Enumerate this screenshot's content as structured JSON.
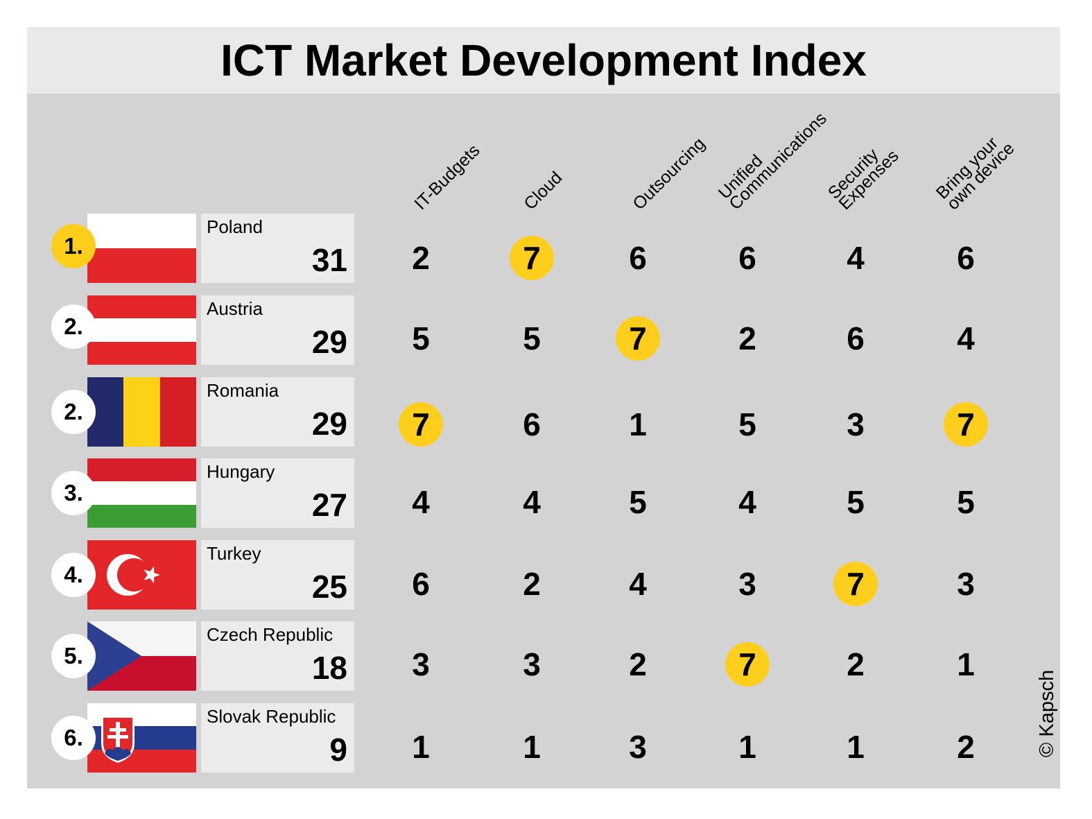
{
  "chart_data": {
    "type": "table",
    "title": "ICT Market Development Index",
    "columns": [
      {
        "lines": [
          "IT-Budgets"
        ]
      },
      {
        "lines": [
          "Cloud"
        ]
      },
      {
        "lines": [
          "Outsourcing"
        ]
      },
      {
        "lines": [
          "Unified",
          "Communications"
        ]
      },
      {
        "lines": [
          "Security",
          "Expenses"
        ]
      },
      {
        "lines": [
          "Bring your",
          "own device"
        ]
      }
    ],
    "rows": [
      {
        "rank": "1.",
        "country": "Poland",
        "total": "31",
        "values": [
          "2",
          "7",
          "6",
          "6",
          "4",
          "6"
        ],
        "highlight": [
          1
        ]
      },
      {
        "rank": "2.",
        "country": "Austria",
        "total": "29",
        "values": [
          "5",
          "5",
          "7",
          "2",
          "6",
          "4"
        ],
        "highlight": [
          2
        ]
      },
      {
        "rank": "2.",
        "country": "Romania",
        "total": "29",
        "values": [
          "7",
          "6",
          "1",
          "5",
          "3",
          "7"
        ],
        "highlight": [
          0,
          5
        ]
      },
      {
        "rank": "3.",
        "country": "Hungary",
        "total": "27",
        "values": [
          "4",
          "4",
          "5",
          "4",
          "5",
          "5"
        ],
        "highlight": []
      },
      {
        "rank": "4.",
        "country": "Turkey",
        "total": "25",
        "values": [
          "6",
          "2",
          "4",
          "3",
          "7",
          "3"
        ],
        "highlight": [
          4
        ]
      },
      {
        "rank": "5.",
        "country": "Czech Republic",
        "total": "18",
        "values": [
          "3",
          "3",
          "2",
          "7",
          "2",
          "1"
        ],
        "highlight": [
          3
        ]
      },
      {
        "rank": "6.",
        "country": "Slovak Republic",
        "total": "9",
        "values": [
          "1",
          "1",
          "3",
          "1",
          "1",
          "2"
        ],
        "highlight": []
      }
    ]
  },
  "credit": "© Kapsch",
  "colors": {
    "background": "#d4d3d3",
    "title_bar": "#e9e9e9",
    "highlight": "#fece1c",
    "name_box": "#ebebeb"
  },
  "flags": [
    "flag-poland-icon",
    "flag-austria-icon",
    "flag-romania-icon",
    "flag-hungary-icon",
    "flag-turkey-icon",
    "flag-czech-republic-icon",
    "flag-slovak-republic-icon"
  ]
}
